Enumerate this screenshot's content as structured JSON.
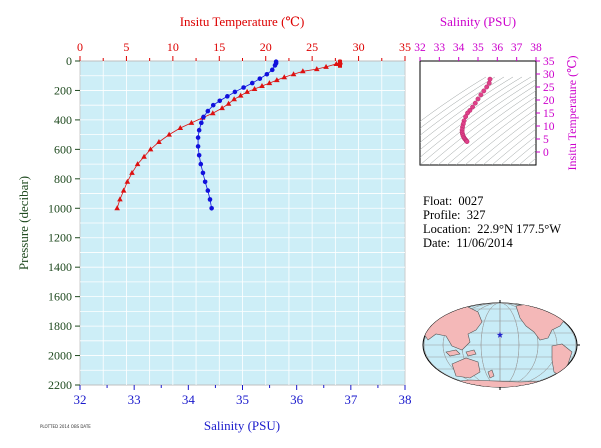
{
  "chart_data": [
    {
      "type": "line",
      "title": "",
      "top_axis": {
        "label": "Insitu Temperature (℃)",
        "range": [
          0,
          35
        ],
        "ticks": [
          0,
          5,
          10,
          15,
          20,
          25,
          30,
          35
        ]
      },
      "bottom_axis": {
        "label": "Salinity (PSU)",
        "range": [
          32,
          38
        ],
        "ticks": [
          32,
          33,
          34,
          35,
          36,
          37,
          38
        ]
      },
      "left_axis": {
        "label": "Pressure (decibar)",
        "range": [
          0,
          2200
        ],
        "inverted": true,
        "ticks": [
          0,
          200,
          400,
          600,
          800,
          1000,
          1200,
          1400,
          1600,
          1800,
          2000,
          2200
        ]
      },
      "grid": true,
      "background": "#cdeef7",
      "series": [
        {
          "name": "",
          "axis": "temperature",
          "marker": "triangle",
          "color": "#dd1111",
          "points": [
            [
              28.0,
              5
            ],
            [
              28.0,
              10
            ],
            [
              27.6,
              20
            ],
            [
              26.5,
              40
            ],
            [
              25.5,
              55
            ],
            [
              24.0,
              70
            ],
            [
              23.0,
              90
            ],
            [
              22.0,
              110
            ],
            [
              21.2,
              130
            ],
            [
              20.4,
              150
            ],
            [
              19.6,
              170
            ],
            [
              18.8,
              190
            ],
            [
              18.0,
              210
            ],
            [
              17.3,
              235
            ],
            [
              16.6,
              260
            ],
            [
              16.0,
              290
            ],
            [
              15.3,
              320
            ],
            [
              14.3,
              355
            ],
            [
              13.2,
              385
            ],
            [
              12.0,
              420
            ],
            [
              10.8,
              455
            ],
            [
              9.6,
              500
            ],
            [
              8.5,
              550
            ],
            [
              7.6,
              600
            ],
            [
              6.9,
              650
            ],
            [
              6.2,
              700
            ],
            [
              5.6,
              760
            ],
            [
              5.1,
              820
            ],
            [
              4.7,
              880
            ],
            [
              4.3,
              940
            ],
            [
              4.0,
              1000
            ]
          ]
        },
        {
          "name": "",
          "axis": "salinity",
          "marker": "circle",
          "color": "#1111dd",
          "points": [
            [
              35.62,
              5
            ],
            [
              35.62,
              15
            ],
            [
              35.6,
              30
            ],
            [
              35.55,
              60
            ],
            [
              35.45,
              90
            ],
            [
              35.32,
              120
            ],
            [
              35.18,
              150
            ],
            [
              35.02,
              180
            ],
            [
              34.86,
              210
            ],
            [
              34.72,
              240
            ],
            [
              34.58,
              270
            ],
            [
              34.46,
              300
            ],
            [
              34.36,
              340
            ],
            [
              34.28,
              380
            ],
            [
              34.24,
              420
            ],
            [
              34.2,
              470
            ],
            [
              34.18,
              520
            ],
            [
              34.18,
              580
            ],
            [
              34.2,
              640
            ],
            [
              34.23,
              700
            ],
            [
              34.27,
              760
            ],
            [
              34.31,
              820
            ],
            [
              34.36,
              880
            ],
            [
              34.4,
              940
            ],
            [
              34.43,
              1000
            ]
          ]
        }
      ]
    },
    {
      "type": "scatter",
      "top_axis": {
        "label": "Salinity (PSU)",
        "range": [
          32,
          38
        ],
        "ticks": [
          32,
          33,
          34,
          35,
          36,
          37,
          38
        ]
      },
      "right_axis": {
        "label": "Insitu Temperature (℃)",
        "range": [
          -5,
          35
        ],
        "ticks": [
          0,
          5,
          10,
          15,
          20,
          25,
          30,
          35
        ]
      },
      "series": [
        {
          "name": "",
          "color": "#e0408a",
          "points": [
            [
              35.62,
              28.0
            ],
            [
              35.58,
              26.5
            ],
            [
              35.45,
              25.0
            ],
            [
              35.3,
              23.5
            ],
            [
              35.15,
              22.0
            ],
            [
              35.0,
              20.4
            ],
            [
              34.86,
              18.8
            ],
            [
              34.72,
              17.3
            ],
            [
              34.58,
              16.0
            ],
            [
              34.46,
              15.0
            ],
            [
              34.36,
              13.6
            ],
            [
              34.28,
              12.0
            ],
            [
              34.24,
              10.8
            ],
            [
              34.2,
              9.6
            ],
            [
              34.18,
              8.5
            ],
            [
              34.18,
              7.6
            ],
            [
              34.2,
              6.9
            ],
            [
              34.23,
              6.2
            ],
            [
              34.27,
              5.6
            ],
            [
              34.31,
              5.1
            ],
            [
              34.36,
              4.7
            ],
            [
              34.4,
              4.3
            ],
            [
              34.43,
              4.0
            ]
          ]
        }
      ]
    }
  ],
  "info": {
    "float_label": "Float:",
    "float_value": "0027",
    "profile_label": "Profile:",
    "profile_value": "327",
    "location_label": "Location:",
    "location_value": "22.9°N  177.5°W",
    "date_label": "Date:",
    "date_value": "11/06/2014"
  },
  "map": {
    "marker_color": "#2222cc",
    "ocean_color": "#c8ecf7",
    "land_color": "#f4b8b8"
  },
  "footnote": "PLOTTED 2014 OBS DATE"
}
